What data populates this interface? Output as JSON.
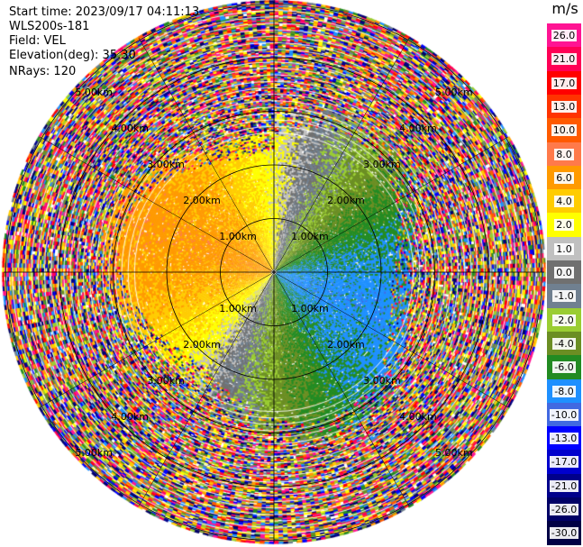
{
  "info": {
    "start_time": "Start time: 2023/09/17 04:11:13",
    "instrument": "WLS200s-181",
    "field": "Field: VEL",
    "elevation": "Elevation(deg): 35.30",
    "nrays": "NRays: 120"
  },
  "colorbar": {
    "unit": "m/s",
    "levels": [
      {
        "label": "26.0",
        "color": "#ff1493"
      },
      {
        "label": "21.0",
        "color": "#ff0055"
      },
      {
        "label": "17.0",
        "color": "#ff0000"
      },
      {
        "label": "13.0",
        "color": "#ff3300"
      },
      {
        "label": "10.0",
        "color": "#ff5a00"
      },
      {
        "label": "8.0",
        "color": "#ff7a4a"
      },
      {
        "label": "6.0",
        "color": "#ff9a00"
      },
      {
        "label": "4.0",
        "color": "#ffcc00"
      },
      {
        "label": "2.0",
        "color": "#ffff00"
      },
      {
        "label": "1.0",
        "color": "#c0c0c0"
      },
      {
        "label": "0.0",
        "color": "#707070"
      },
      {
        "label": "-1.0",
        "color": "#708090"
      },
      {
        "label": "-2.0",
        "color": "#9acd32"
      },
      {
        "label": "-4.0",
        "color": "#6b8e23"
      },
      {
        "label": "-6.0",
        "color": "#228b22"
      },
      {
        "label": "-8.0",
        "color": "#1e90ff"
      },
      {
        "label": "-10.0",
        "color": "#4169e1"
      },
      {
        "label": "-13.0",
        "color": "#0000ff"
      },
      {
        "label": "-17.0",
        "color": "#0000cd"
      },
      {
        "label": "-21.0",
        "color": "#00008b"
      },
      {
        "label": "-26.0",
        "color": "#000066"
      },
      {
        "label": "-30.0",
        "color": "#000044"
      }
    ]
  },
  "chart_data": {
    "type": "heatmap",
    "projection": "polar PPI",
    "field": "VEL",
    "units": "m/s",
    "elevation_deg": 35.3,
    "n_rays": 120,
    "range_rings_km": [
      1.0,
      2.0,
      3.0,
      4.0,
      5.0
    ],
    "ring_labels": [
      "1.00km",
      "2.00km",
      "3.00km",
      "4.00km",
      "5.00km"
    ],
    "value_range": [
      -30.0,
      26.0
    ],
    "pattern": {
      "near_field": "positive velocities (approx. +2 to +8 m/s) toward the west/northwest, negative velocities (approx. -2 to -6 m/s) toward the east/southeast; near-zero band along southwest-northeast diagonal",
      "far_field": "noisy multicolor returns beyond approx. 3 km"
    }
  }
}
